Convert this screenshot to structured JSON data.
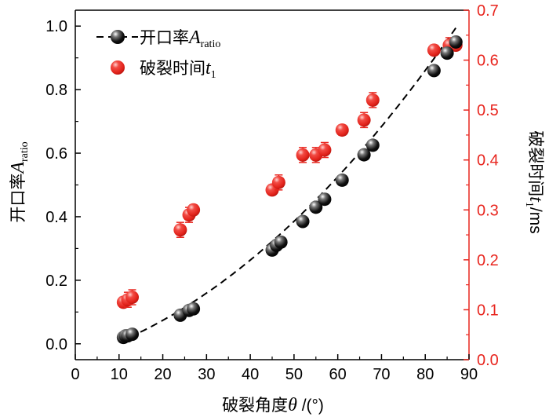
{
  "chart_data": {
    "type": "scatter",
    "x_axis": {
      "label_prefix": "破裂角度",
      "label_symbol": "θ",
      "label_unit": " /(°)",
      "min": 0,
      "max": 90,
      "ticks": [
        0,
        10,
        20,
        30,
        40,
        50,
        60,
        70,
        80,
        90
      ]
    },
    "y_axis_left": {
      "label_prefix": "开口率",
      "label_symbol": "A",
      "label_sub": "ratio",
      "min": -0.05,
      "max": 1.05,
      "ticks": [
        0.0,
        0.2,
        0.4,
        0.6,
        0.8,
        1.0
      ],
      "color": "#000000"
    },
    "y_axis_right": {
      "label_prefix": "破裂时间",
      "label_symbol": "t",
      "label_sub": "1",
      "label_unit": "/ms",
      "min": 0.0,
      "max": 0.7,
      "ticks": [
        0.0,
        0.1,
        0.2,
        0.3,
        0.4,
        0.5,
        0.6,
        0.7
      ],
      "color": "#e8261f"
    },
    "series": [
      {
        "name_prefix": "开口率",
        "name_symbol": "A",
        "name_sub": "ratio",
        "axis": "left",
        "color": "#000000",
        "points": [
          [
            11,
            0.02
          ],
          [
            11.5,
            0.025
          ],
          [
            12,
            0.025
          ],
          [
            13,
            0.03
          ],
          [
            24,
            0.09
          ],
          [
            26,
            0.105
          ],
          [
            27,
            0.11
          ],
          [
            45,
            0.295
          ],
          [
            46,
            0.31
          ],
          [
            47,
            0.32
          ],
          [
            52,
            0.385
          ],
          [
            55,
            0.43
          ],
          [
            57,
            0.455
          ],
          [
            61,
            0.515
          ],
          [
            66,
            0.595
          ],
          [
            68,
            0.625
          ],
          [
            82,
            0.86
          ],
          [
            85,
            0.915
          ],
          [
            87,
            0.95
          ]
        ],
        "fit_line": "dashed"
      },
      {
        "name_prefix": "破裂时间",
        "name_symbol": "t",
        "name_sub": "1",
        "axis": "right",
        "color": "#e8261f",
        "points": [
          [
            11,
            0.115
          ],
          [
            12,
            0.12
          ],
          [
            13,
            0.125
          ],
          [
            24,
            0.26
          ],
          [
            26,
            0.29
          ],
          [
            27,
            0.3
          ],
          [
            45,
            0.34
          ],
          [
            46.5,
            0.355
          ],
          [
            52,
            0.41
          ],
          [
            55,
            0.41
          ],
          [
            57,
            0.42
          ],
          [
            61,
            0.46
          ],
          [
            66,
            0.48
          ],
          [
            68,
            0.52
          ],
          [
            82,
            0.62
          ],
          [
            85.5,
            0.63
          ],
          [
            87,
            0.63
          ]
        ],
        "error": [
          0.01,
          0.015,
          0.015,
          0.015,
          0.015,
          0.01,
          0.01,
          0.015,
          0.015,
          0.015,
          0.015,
          0.01,
          0.015,
          0.015,
          0.01,
          0.015,
          0.01
        ]
      }
    ],
    "fit": {
      "series": 0,
      "x_range": [
        10,
        87
      ],
      "coeffs": [
        -0.0435,
        0.00405,
        9.06e-05
      ]
    },
    "legend_position": "top-left",
    "grid": false
  }
}
